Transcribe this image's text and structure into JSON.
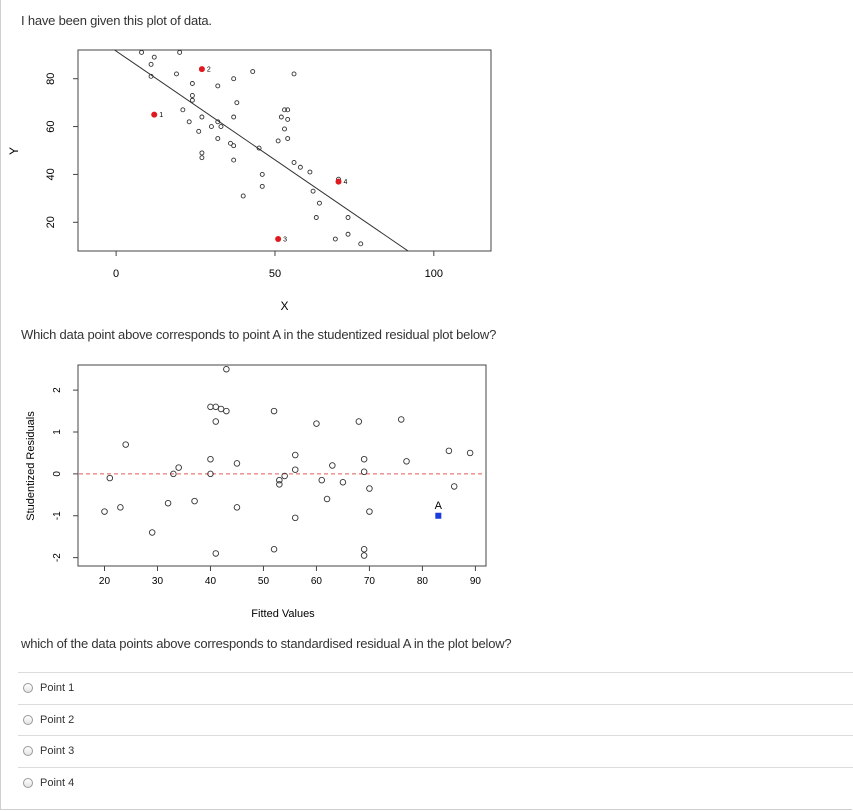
{
  "intro_text": "I have been given this plot of data.",
  "question1": "Which data point above corresponds to point A in the studentized residual plot below?",
  "question2": "which of the data points above corresponds to standardised residual A in the plot below?",
  "options": [
    {
      "label": "Point 1"
    },
    {
      "label": "Point 2"
    },
    {
      "label": "Point 3"
    },
    {
      "label": "Point 4"
    }
  ],
  "colors": {
    "highlight_red": "#e0191f",
    "highlight_blue": "#1a3cdc",
    "reference_dash": "#e55a5a"
  },
  "chart_data": [
    {
      "type": "scatter",
      "xlabel": "X",
      "ylabel": "Y",
      "xlim": [
        -12,
        118
      ],
      "ylim": [
        8,
        92
      ],
      "xticks": [
        0,
        50,
        100
      ],
      "yticks": [
        20,
        40,
        60,
        80
      ],
      "fit_line": {
        "x1": -0.5,
        "y1": 92,
        "x2": 93,
        "y2": 7
      },
      "points": [
        {
          "x": 8,
          "y": 91
        },
        {
          "x": 12,
          "y": 89
        },
        {
          "x": 20,
          "y": 91
        },
        {
          "x": 11,
          "y": 86
        },
        {
          "x": 11,
          "y": 81
        },
        {
          "x": 19,
          "y": 82
        },
        {
          "x": 24,
          "y": 78
        },
        {
          "x": 24,
          "y": 73
        },
        {
          "x": 24,
          "y": 71
        },
        {
          "x": 21,
          "y": 67
        },
        {
          "x": 27,
          "y": 64
        },
        {
          "x": 23,
          "y": 62
        },
        {
          "x": 26,
          "y": 58
        },
        {
          "x": 30,
          "y": 60
        },
        {
          "x": 33,
          "y": 60
        },
        {
          "x": 32,
          "y": 62
        },
        {
          "x": 32,
          "y": 55
        },
        {
          "x": 36,
          "y": 53
        },
        {
          "x": 37,
          "y": 52
        },
        {
          "x": 37,
          "y": 64
        },
        {
          "x": 38,
          "y": 70
        },
        {
          "x": 32,
          "y": 77
        },
        {
          "x": 37,
          "y": 80
        },
        {
          "x": 43,
          "y": 83
        },
        {
          "x": 27,
          "y": 49
        },
        {
          "x": 27,
          "y": 47
        },
        {
          "x": 37,
          "y": 46
        },
        {
          "x": 45,
          "y": 51
        },
        {
          "x": 51,
          "y": 54
        },
        {
          "x": 54,
          "y": 55
        },
        {
          "x": 53,
          "y": 59
        },
        {
          "x": 52,
          "y": 64
        },
        {
          "x": 53,
          "y": 67
        },
        {
          "x": 54,
          "y": 67
        },
        {
          "x": 54,
          "y": 63
        },
        {
          "x": 46,
          "y": 40
        },
        {
          "x": 46,
          "y": 35
        },
        {
          "x": 40,
          "y": 31
        },
        {
          "x": 56,
          "y": 45
        },
        {
          "x": 58,
          "y": 43
        },
        {
          "x": 61,
          "y": 41
        },
        {
          "x": 62,
          "y": 33
        },
        {
          "x": 64,
          "y": 28
        },
        {
          "x": 63,
          "y": 22
        },
        {
          "x": 69,
          "y": 13
        },
        {
          "x": 73,
          "y": 15
        },
        {
          "x": 73,
          "y": 22
        },
        {
          "x": 77,
          "y": 11
        },
        {
          "x": 70,
          "y": 38
        },
        {
          "x": 56,
          "y": 82
        }
      ],
      "highlighted": [
        {
          "label": "1",
          "x": 12,
          "y": 65
        },
        {
          "label": "2",
          "x": 27,
          "y": 84
        },
        {
          "label": "3",
          "x": 51,
          "y": 13
        },
        {
          "label": "4",
          "x": 70,
          "y": 37
        }
      ]
    },
    {
      "type": "scatter",
      "xlabel": "Fitted Values",
      "ylabel": "Studentized Residuals",
      "xlim": [
        15,
        92
      ],
      "ylim": [
        -2.2,
        2.6
      ],
      "xticks": [
        20,
        30,
        40,
        50,
        60,
        70,
        80,
        90
      ],
      "yticks": [
        -2,
        -1,
        0,
        1,
        2
      ],
      "reference_line_y": 0,
      "points": [
        {
          "x": 20,
          "y": -0.9
        },
        {
          "x": 21,
          "y": -0.1
        },
        {
          "x": 23,
          "y": -0.8
        },
        {
          "x": 24,
          "y": 0.7
        },
        {
          "x": 29,
          "y": -1.4
        },
        {
          "x": 32,
          "y": -0.7
        },
        {
          "x": 33,
          "y": 0.0
        },
        {
          "x": 34,
          "y": 0.15
        },
        {
          "x": 37,
          "y": -0.65
        },
        {
          "x": 40,
          "y": 0.35
        },
        {
          "x": 40,
          "y": 0.0
        },
        {
          "x": 40,
          "y": 1.6
        },
        {
          "x": 41,
          "y": 1.6
        },
        {
          "x": 42,
          "y": 1.55
        },
        {
          "x": 43,
          "y": 1.5
        },
        {
          "x": 41,
          "y": 1.25
        },
        {
          "x": 43,
          "y": 2.5
        },
        {
          "x": 45,
          "y": 0.25
        },
        {
          "x": 45,
          "y": -0.8
        },
        {
          "x": 41,
          "y": -1.9
        },
        {
          "x": 52,
          "y": 1.5
        },
        {
          "x": 52,
          "y": -1.8
        },
        {
          "x": 53,
          "y": -0.25
        },
        {
          "x": 53,
          "y": -0.15
        },
        {
          "x": 54,
          "y": -0.05
        },
        {
          "x": 56,
          "y": 0.45
        },
        {
          "x": 56,
          "y": 0.1
        },
        {
          "x": 56,
          "y": -1.05
        },
        {
          "x": 60,
          "y": 1.2
        },
        {
          "x": 61,
          "y": -0.15
        },
        {
          "x": 63,
          "y": 0.2
        },
        {
          "x": 62,
          "y": -0.6
        },
        {
          "x": 65,
          "y": -0.2
        },
        {
          "x": 68,
          "y": 1.25
        },
        {
          "x": 69,
          "y": 0.35
        },
        {
          "x": 69,
          "y": 0.05
        },
        {
          "x": 70,
          "y": -0.35
        },
        {
          "x": 70,
          "y": -0.9
        },
        {
          "x": 69,
          "y": -1.8
        },
        {
          "x": 69,
          "y": -1.95
        },
        {
          "x": 76,
          "y": 1.3
        },
        {
          "x": 77,
          "y": 0.3
        },
        {
          "x": 85,
          "y": 0.55
        },
        {
          "x": 86,
          "y": -0.3
        },
        {
          "x": 89,
          "y": 0.5
        }
      ],
      "highlighted": [
        {
          "label": "A",
          "x": 83,
          "y": -1.0
        }
      ]
    }
  ]
}
